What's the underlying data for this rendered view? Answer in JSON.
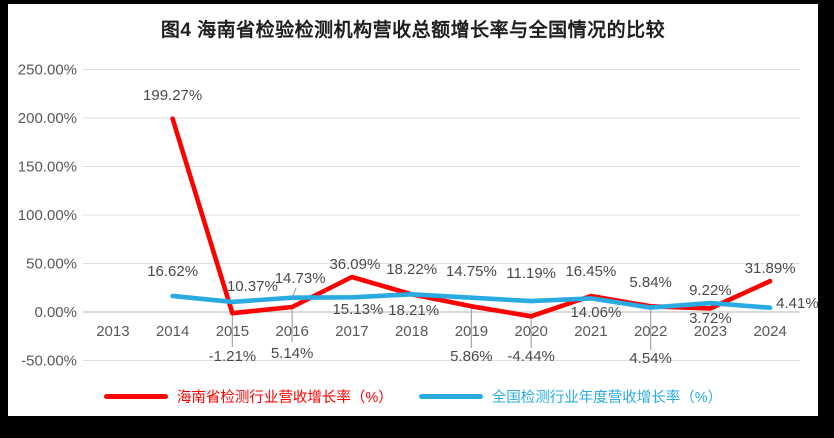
{
  "frame": {
    "background": "#000000",
    "panel_background": "#ffffff"
  },
  "chart_data": {
    "type": "line",
    "title": "图4 海南省检验检测机构营收总额增长率与全国情况的比较",
    "categories": [
      "2013",
      "2014",
      "2015",
      "2016",
      "2017",
      "2018",
      "2019",
      "2020",
      "2021",
      "2022",
      "2023",
      "2024"
    ],
    "series": [
      {
        "name": "海南省检测行业营收增长率（%）",
        "color": "#FE0000",
        "values": [
          null,
          199.27,
          -1.21,
          5.14,
          36.09,
          18.22,
          5.86,
          -4.44,
          16.45,
          5.84,
          3.72,
          31.89
        ],
        "labels": [
          null,
          "199.27%",
          "-1.21%",
          "5.14%",
          "36.09%",
          "18.22%",
          "5.86%",
          "-4.44%",
          "16.45%",
          "5.84%",
          "3.72%",
          "31.89%"
        ]
      },
      {
        "name": "全国检测行业年度营收增长率（%）",
        "color": "#29ABE2",
        "values": [
          null,
          16.62,
          10.37,
          14.73,
          15.13,
          18.21,
          14.75,
          11.19,
          14.06,
          4.54,
          9.22,
          4.41
        ],
        "labels": [
          null,
          "16.62%",
          "10.37%",
          "14.73%",
          "15.13%",
          "18.21%",
          "14.75%",
          "11.19%",
          "14.06%",
          "4.54%",
          "9.22%",
          "4.41%"
        ]
      }
    ],
    "ylim": [
      -50,
      250
    ],
    "ytick_step": 50,
    "ytick_labels": [
      "250.00%",
      "200.00%",
      "150.00%",
      "100.00%",
      "50.00%",
      "0.00%",
      "-50.00%"
    ],
    "grid": true,
    "legend_position": "bottom"
  },
  "colors": {
    "grid": "#DFDFDF",
    "zero_line": "#C4C4C4",
    "tick_text": "#595959",
    "label_text": "#4A4A4A",
    "leader": "#A6A6A6",
    "title_text": "#1F1F1F"
  }
}
